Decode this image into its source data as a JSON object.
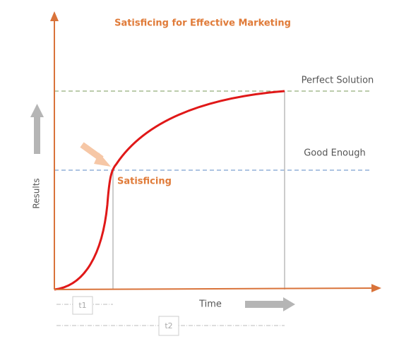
{
  "title": "Satisficing for Effective Marketing",
  "levels": {
    "perfect": "Perfect Solution",
    "good": "Good Enough"
  },
  "point_label": "Satisficing",
  "axes": {
    "y": "Results",
    "x": "Time"
  },
  "times": [
    "t1",
    "t2"
  ]
}
